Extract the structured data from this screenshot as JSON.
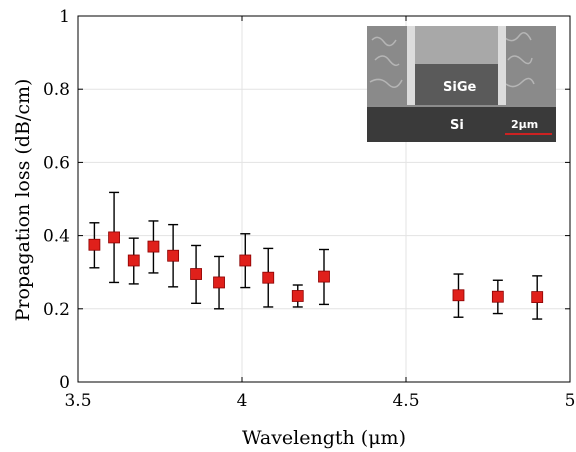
{
  "chart_data": {
    "type": "scatter",
    "title": "",
    "xlabel": "Wavelength (μm)",
    "ylabel": "Propagation loss (dB/cm)",
    "xlim": [
      3.5,
      5
    ],
    "ylim": [
      0,
      1
    ],
    "x_ticks": [
      "3.5",
      "4",
      "4.5",
      "5"
    ],
    "y_ticks": [
      "0",
      "0.2",
      "0.4",
      "0.6",
      "0.8",
      "1"
    ],
    "grid": true,
    "marker_color": "#e0201b",
    "series": [
      {
        "marker": "square",
        "error_bars": true,
        "points": [
          {
            "x": 3.55,
            "y": 0.375,
            "err_low": 0.312,
            "err_high": 0.435
          },
          {
            "x": 3.61,
            "y": 0.395,
            "err_low": 0.272,
            "err_high": 0.518
          },
          {
            "x": 3.67,
            "y": 0.332,
            "err_low": 0.268,
            "err_high": 0.393
          },
          {
            "x": 3.73,
            "y": 0.37,
            "err_low": 0.298,
            "err_high": 0.44
          },
          {
            "x": 3.79,
            "y": 0.345,
            "err_low": 0.26,
            "err_high": 0.43
          },
          {
            "x": 3.86,
            "y": 0.295,
            "err_low": 0.215,
            "err_high": 0.373
          },
          {
            "x": 3.93,
            "y": 0.272,
            "err_low": 0.2,
            "err_high": 0.343
          },
          {
            "x": 4.01,
            "y": 0.332,
            "err_low": 0.258,
            "err_high": 0.405
          },
          {
            "x": 4.08,
            "y": 0.285,
            "err_low": 0.205,
            "err_high": 0.365
          },
          {
            "x": 4.17,
            "y": 0.235,
            "err_low": 0.205,
            "err_high": 0.265
          },
          {
            "x": 4.25,
            "y": 0.288,
            "err_low": 0.212,
            "err_high": 0.362
          },
          {
            "x": 4.66,
            "y": 0.237,
            "err_low": 0.177,
            "err_high": 0.295
          },
          {
            "x": 4.78,
            "y": 0.233,
            "err_low": 0.187,
            "err_high": 0.278
          },
          {
            "x": 4.9,
            "y": 0.232,
            "err_low": 0.172,
            "err_high": 0.29
          }
        ]
      }
    ],
    "inset": {
      "labels": [
        "SiGe",
        "Si",
        "2μm"
      ],
      "scale_bar_color": "#cc2222"
    }
  }
}
